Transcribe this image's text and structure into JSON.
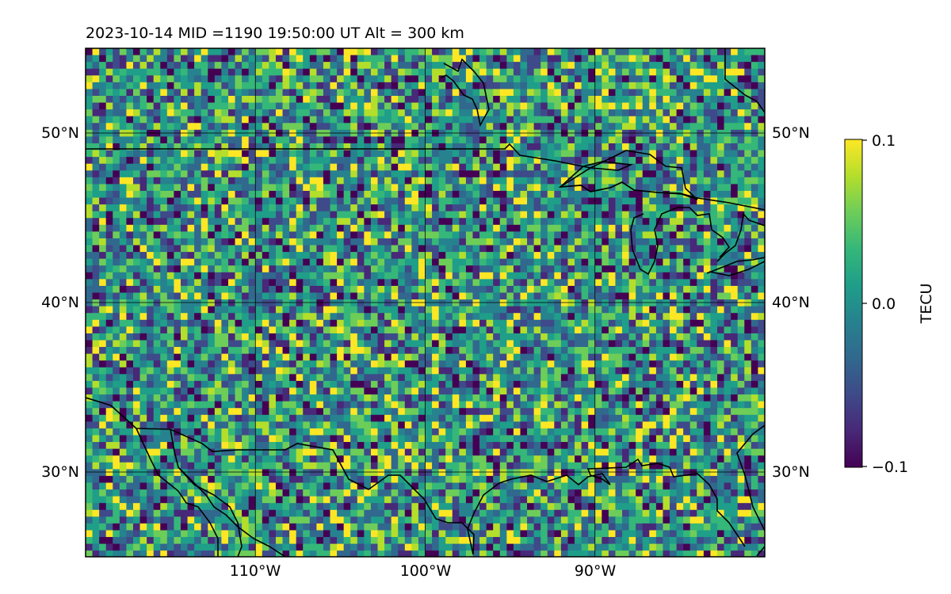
{
  "title": "2023-10-14  MID =1190    19:50:00  UT  Alt = 300 km",
  "map": {
    "lon_range": [
      -120,
      -80
    ],
    "lat_range": [
      25,
      55
    ],
    "grid": true,
    "lat_labels": [
      {
        "lat": 50,
        "text": "50°N"
      },
      {
        "lat": 40,
        "text": "40°N"
      },
      {
        "lat": 30,
        "text": "30°N"
      }
    ],
    "lon_labels": [
      {
        "lon": -110,
        "text": "110°W"
      },
      {
        "lon": -100,
        "text": "100°W"
      },
      {
        "lon": -90,
        "text": "90°W"
      }
    ],
    "field": "TEC perturbation (noise-like, mostly near 0.0 TECU)"
  },
  "colorbar": {
    "label": "TECU",
    "min": -0.1,
    "max": 0.1,
    "ticks": [
      "0.1",
      "0.0",
      "−0.1"
    ],
    "colormap": [
      "#440154",
      "#482878",
      "#3e4a89",
      "#31688e",
      "#26828e",
      "#1f9e89",
      "#35b779",
      "#6dcd59",
      "#b4de2c",
      "#fde725"
    ]
  },
  "colors": {
    "coastline": "#000000",
    "grid": "#000000"
  }
}
